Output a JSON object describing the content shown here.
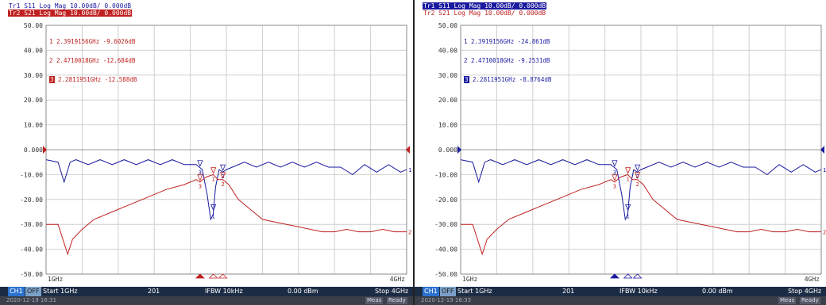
{
  "panels": [
    {
      "header": {
        "tr1": "Tr1 S11 Log Mag 10.00dB/ 0.000dB",
        "tr2": "Tr2 S21 Log Mag 10.00dB/ 0.000dB",
        "active": "Tr2"
      },
      "markers": [
        {
          "num": "1",
          "freq": "2.3919156GHz",
          "value": "-9.6026dB"
        },
        {
          "num": "2",
          "freq": "2.4710018GHz",
          "value": "-12.684dB"
        },
        {
          "num": "3",
          "freq": "2.2811951GHz",
          "value": "-12.588dB"
        }
      ],
      "status": {
        "ch": "CH1",
        "off": "OFF",
        "start": "Start 1GHz",
        "points": "201",
        "ifbw": "IFBW 10kHz",
        "power": "0.00 dBm",
        "stop": "Stop 4GHz"
      },
      "status2": {
        "timestamp": "2020-12-19 16:31",
        "meas": "Meas",
        "ready": "Ready"
      }
    },
    {
      "header": {
        "tr1": "Tr1 S11 Log Mag 10.00dB/ 0.000dB",
        "tr2": "Tr2 S21 Log Mag 10.00dB/ 0.000dB",
        "active": "Tr1"
      },
      "markers": [
        {
          "num": "1",
          "freq": "2.3919156GHz",
          "value": "-24.861dB"
        },
        {
          "num": "2",
          "freq": "2.4710018GHz",
          "value": "-9.2531dB"
        },
        {
          "num": "3",
          "freq": "2.2811951GHz",
          "value": "-8.8764dB"
        }
      ],
      "status": {
        "ch": "CH1",
        "off": "OFF",
        "start": "Start 1GHz",
        "points": "201",
        "ifbw": "IFBW 10kHz",
        "power": "0.00 dBm",
        "stop": "Stop 4GHz"
      },
      "status2": {
        "timestamp": "2020-12-19 16:33",
        "meas": "Meas",
        "ready": "Ready"
      }
    }
  ],
  "chart_data": [
    {
      "type": "line",
      "xlim": [
        1,
        4
      ],
      "ylim": [
        -50,
        50
      ],
      "xunit": "GHz",
      "yticks": [
        "50.00",
        "40.00",
        "30.00",
        "20.00",
        "10.00",
        "0.000",
        "-10.00",
        "-20.00",
        "-30.00",
        "-40.00",
        "-50.00"
      ],
      "xticks": [
        "1GHz",
        "4GHz"
      ],
      "grid": true,
      "colors": {
        "s11": "#1a1aa0",
        "s21": "#c02020"
      },
      "series": [
        {
          "name": "S11",
          "trace_end_label": "1",
          "x": [
            1.0,
            1.1,
            1.15,
            1.2,
            1.25,
            1.35,
            1.45,
            1.55,
            1.65,
            1.75,
            1.85,
            1.95,
            2.05,
            2.15,
            2.25,
            2.3,
            2.34,
            2.37,
            2.39,
            2.41,
            2.44,
            2.47,
            2.5,
            2.55,
            2.65,
            2.75,
            2.85,
            2.95,
            3.05,
            3.15,
            3.25,
            3.35,
            3.45,
            3.55,
            3.65,
            3.75,
            3.85,
            3.95,
            4.0
          ],
          "y": [
            -4,
            -5,
            -13,
            -5,
            -4,
            -6,
            -4,
            -6,
            -4,
            -6,
            -4,
            -6,
            -4,
            -6,
            -6,
            -8,
            -18,
            -28,
            -26,
            -15,
            -8,
            -9,
            -8,
            -7,
            -5,
            -7,
            -5,
            -7,
            -5,
            -7,
            -5,
            -7,
            -7,
            -10,
            -6,
            -9,
            -6,
            -9,
            -8
          ]
        },
        {
          "name": "S21",
          "trace_end_label": "2",
          "x": [
            1.0,
            1.1,
            1.18,
            1.22,
            1.3,
            1.4,
            1.55,
            1.7,
            1.85,
            2.0,
            2.15,
            2.25,
            2.28,
            2.33,
            2.39,
            2.43,
            2.47,
            2.52,
            2.6,
            2.7,
            2.8,
            2.9,
            3.0,
            3.1,
            3.2,
            3.3,
            3.4,
            3.5,
            3.6,
            3.7,
            3.8,
            3.9,
            4.0
          ],
          "y": [
            -30,
            -30,
            -42,
            -36,
            -32,
            -28,
            -25,
            -22,
            -19,
            -16,
            -14,
            -12,
            -13,
            -11,
            -10,
            -12,
            -12,
            -14,
            -20,
            -24,
            -28,
            -29,
            -30,
            -31,
            -32,
            -33,
            -33,
            -32,
            -33,
            -33,
            -32,
            -33,
            -33
          ]
        }
      ]
    },
    {
      "type": "line",
      "xlim": [
        1,
        4
      ],
      "ylim": [
        -50,
        50
      ],
      "xunit": "GHz",
      "yticks": [
        "50.00",
        "40.00",
        "30.00",
        "20.00",
        "10.00",
        "0.000",
        "-10.00",
        "-20.00",
        "-30.00",
        "-40.00",
        "-50.00"
      ],
      "xticks": [
        "1GHz",
        "4GHz"
      ],
      "grid": true,
      "colors": {
        "s11": "#1a1aa0",
        "s21": "#c02020"
      },
      "series": [
        {
          "name": "S11",
          "trace_end_label": "1",
          "x": [
            1.0,
            1.1,
            1.15,
            1.2,
            1.25,
            1.35,
            1.45,
            1.55,
            1.65,
            1.75,
            1.85,
            1.95,
            2.05,
            2.15,
            2.25,
            2.3,
            2.34,
            2.37,
            2.39,
            2.41,
            2.44,
            2.47,
            2.5,
            2.55,
            2.65,
            2.75,
            2.85,
            2.95,
            3.05,
            3.15,
            3.25,
            3.35,
            3.45,
            3.55,
            3.65,
            3.75,
            3.85,
            3.95,
            4.0
          ],
          "y": [
            -4,
            -5,
            -13,
            -5,
            -4,
            -6,
            -4,
            -6,
            -4,
            -6,
            -4,
            -6,
            -4,
            -6,
            -6,
            -8,
            -18,
            -28,
            -26,
            -15,
            -8,
            -9,
            -8,
            -7,
            -5,
            -7,
            -5,
            -7,
            -5,
            -7,
            -5,
            -7,
            -7,
            -10,
            -6,
            -9,
            -6,
            -9,
            -8
          ]
        },
        {
          "name": "S21",
          "trace_end_label": "2",
          "x": [
            1.0,
            1.1,
            1.18,
            1.22,
            1.3,
            1.4,
            1.55,
            1.7,
            1.85,
            2.0,
            2.15,
            2.25,
            2.28,
            2.33,
            2.39,
            2.43,
            2.47,
            2.52,
            2.6,
            2.7,
            2.8,
            2.9,
            3.0,
            3.1,
            3.2,
            3.3,
            3.4,
            3.5,
            3.6,
            3.7,
            3.8,
            3.9,
            4.0
          ],
          "y": [
            -30,
            -30,
            -42,
            -36,
            -32,
            -28,
            -25,
            -22,
            -19,
            -16,
            -14,
            -12,
            -13,
            -11,
            -10,
            -12,
            -12,
            -14,
            -20,
            -24,
            -28,
            -29,
            -30,
            -31,
            -32,
            -33,
            -33,
            -32,
            -33,
            -33,
            -32,
            -33,
            -33
          ]
        }
      ]
    }
  ]
}
